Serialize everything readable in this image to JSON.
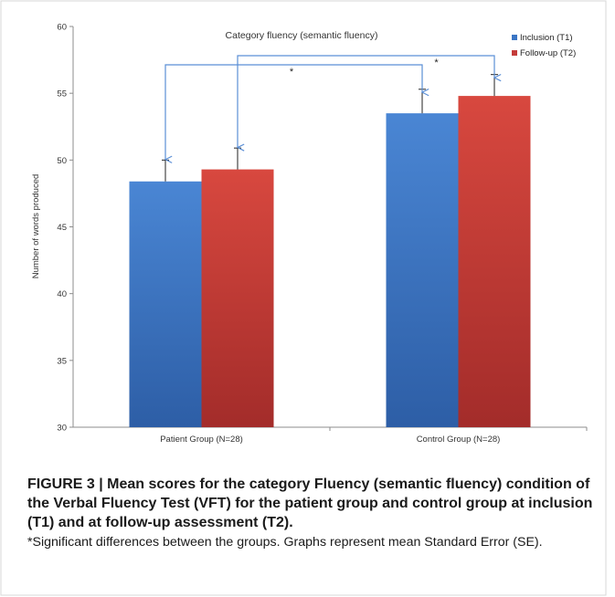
{
  "chart_data": {
    "type": "bar",
    "title": "Category fluency (semantic fluency)",
    "xlabel": "",
    "ylabel": "Number of words produced",
    "ylim": [
      30,
      60
    ],
    "yticks": [
      30,
      35,
      40,
      45,
      50,
      55,
      60
    ],
    "categories": [
      "Patient Group (N=28)",
      "Control Group (N=28)"
    ],
    "series": [
      {
        "name": "Inclusion (T1)",
        "color": "#3a75c4",
        "values": [
          48.4,
          53.5
        ],
        "errors": [
          1.6,
          1.8
        ]
      },
      {
        "name": "Follow-up (T2)",
        "color": "#c43c3a",
        "values": [
          49.3,
          54.8
        ],
        "errors": [
          1.6,
          1.6
        ]
      }
    ],
    "annotations": [
      {
        "text": "*",
        "between": "Patient Group (N=28) Inclusion (T1) and Control Group (N=28) Inclusion (T1)"
      },
      {
        "text": "*",
        "between": "Patient Group (N=28) Follow-up (T2) and Control Group (N=28) Follow-up (T2)"
      }
    ],
    "grid": false,
    "legend_position": "top-right"
  },
  "caption": {
    "title": "FIGURE 3 | Mean scores for the category Fluency (semantic fluency) condition of the Verbal Fluency Test (VFT) for the patient group and control group at inclusion (T1) and at follow-up assessment (T2).",
    "note": "*Significant differences between the groups. Graphs represent mean Standard Error (SE)."
  }
}
